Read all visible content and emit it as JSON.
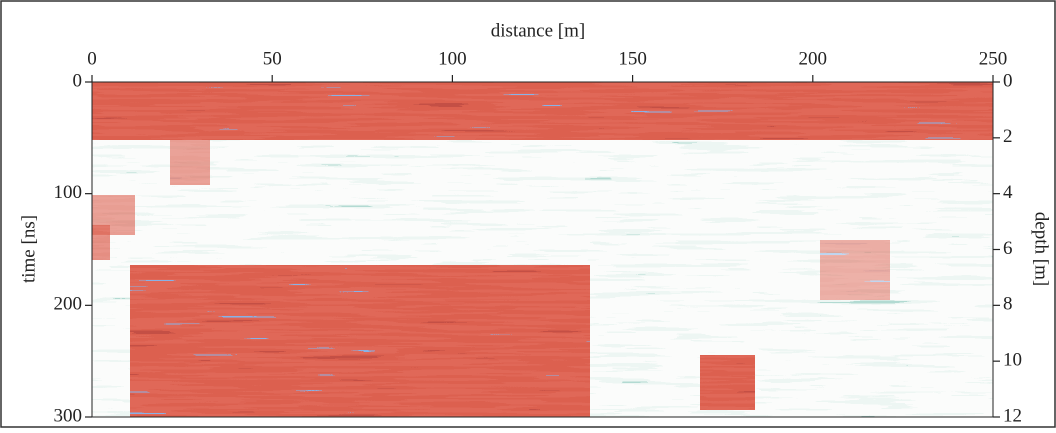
{
  "chart_data": {
    "type": "radargram",
    "xlabel": "distance [m]",
    "ylabel": "time [ns]",
    "y2label": "depth [m]",
    "xlim": [
      0,
      250
    ],
    "xticks": [
      0,
      50,
      100,
      150,
      200,
      250
    ],
    "ylim": [
      0,
      300
    ],
    "yticks": [
      0,
      100,
      200,
      300
    ],
    "y_inverted": true,
    "y2lim": [
      0,
      12
    ],
    "y2ticks": [
      0,
      2,
      4,
      6,
      8,
      10,
      12
    ]
  }
}
